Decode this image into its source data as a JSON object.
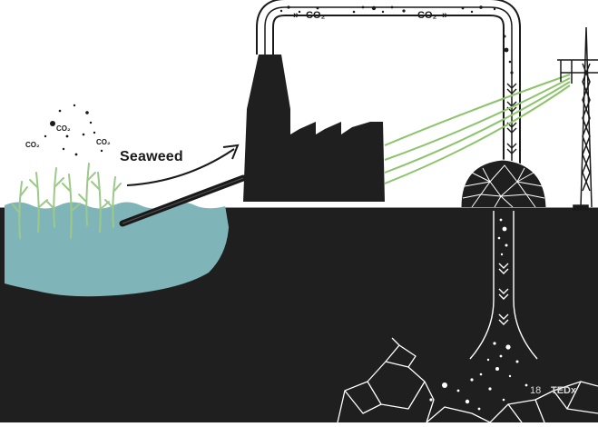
{
  "labels": {
    "seaweed": "Seaweed",
    "co2_a": "CO₂",
    "co2_b": "CO₂",
    "co2_c": "CO₂",
    "pipe_co2_left": "CO₂",
    "pipe_co2_right": "CO₂",
    "pipe_arrows_left": "»",
    "pipe_arrows_right": "»"
  },
  "footer": {
    "slide_number": "18",
    "brand": "TEDx"
  },
  "colors": {
    "ground": "#1f1f1f",
    "water": "#7fb5b9",
    "seaweed": "#9cc98a",
    "power_line": "#8cc46b",
    "ink": "#1a1a1a",
    "outline": "#ffffff"
  }
}
